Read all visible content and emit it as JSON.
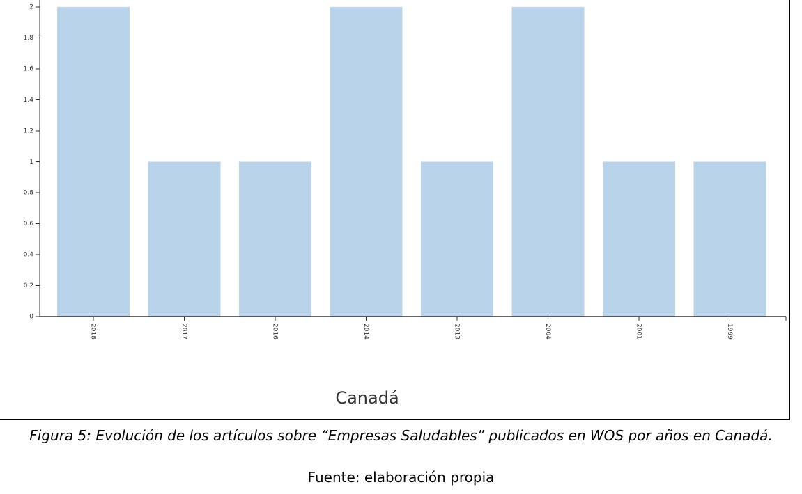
{
  "chart_data": {
    "type": "bar",
    "title": "Canadá",
    "categories": [
      "2018",
      "2017",
      "2016",
      "2014",
      "2013",
      "2004",
      "2001",
      "1999"
    ],
    "values": [
      2,
      1,
      1,
      2,
      1,
      2,
      1,
      1
    ],
    "color": "#b8d3ea",
    "ylim": [
      0,
      2
    ],
    "yticks": [
      0,
      0.2,
      0.4,
      0.6,
      0.8,
      1,
      1.2,
      1.4,
      1.6,
      1.8,
      2
    ],
    "grid": false
  },
  "caption": "Figura 5: Evolución de los artículos sobre “Empresas Saludables”  publicados en WOS por años en Canadá.",
  "source": "Fuente: elaboración propia"
}
